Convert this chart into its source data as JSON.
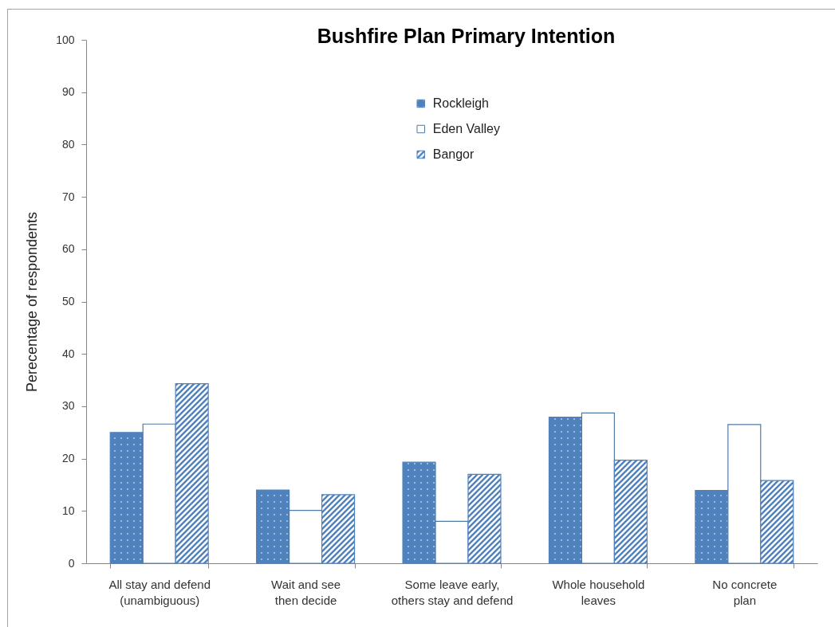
{
  "chart_data": {
    "type": "bar",
    "title": "Bushfire Plan Primary Intention",
    "ylabel": "Perecentage of respondents",
    "categories": [
      "All stay and defend (unambiguous)",
      "Wait and see then decide",
      "Some leave early, others stay and defend",
      "Whole household leaves",
      "No concrete plan"
    ],
    "series": [
      {
        "name": "Rockleigh",
        "color": "#4f81bd",
        "values": [
          25.0,
          14.0,
          19.3,
          27.9,
          13.9
        ]
      },
      {
        "name": "Eden Valley",
        "color": "#ffffff",
        "values": [
          26.6,
          10.1,
          8.0,
          28.7,
          26.5
        ]
      },
      {
        "name": "Bangor",
        "color": "#4f81bd",
        "values": [
          34.3,
          13.1,
          17.0,
          19.7,
          15.8
        ]
      }
    ],
    "ylim": [
      0,
      100
    ],
    "yticks": [
      0,
      10,
      20,
      30,
      40,
      50,
      60,
      70,
      80,
      90,
      100
    ],
    "grid": false,
    "legend": "top"
  }
}
